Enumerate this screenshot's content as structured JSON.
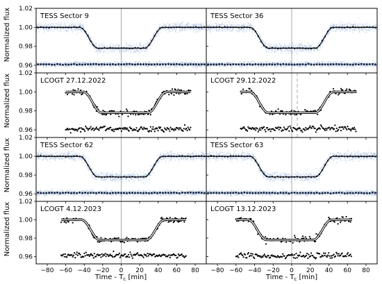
{
  "figure": {
    "ylabel": "Normalized flux",
    "xlabel": "Time - T",
    "xlabel_sub": "c",
    "xlabel_unit": " [min]"
  },
  "chart_data": {
    "type": "scatter",
    "xlim": [
      -92,
      92
    ],
    "ylim": [
      0.952,
      1.02
    ],
    "xticks": [
      -80,
      -60,
      -40,
      -20,
      0,
      20,
      40,
      60,
      80
    ],
    "yticks": [
      0.96,
      0.98,
      1.0,
      1.02
    ],
    "ytick_labels": [
      "0.96",
      "0.98",
      "1.00",
      "1.02"
    ],
    "grid": false,
    "transit_model": {
      "depth": 0.022,
      "t14_half": 45,
      "ingress": 20
    },
    "panels": [
      {
        "title": "TESS Sector 9",
        "kind": "tess",
        "row": 0,
        "col": 0,
        "markers": [
          0
        ]
      },
      {
        "title": "TESS Sector 36",
        "kind": "tess",
        "row": 0,
        "col": 1,
        "markers": [
          0
        ]
      },
      {
        "title": "LCOGT 27.12.2022",
        "kind": "lcogt",
        "row": 1,
        "col": 0,
        "markers": [
          0
        ],
        "dashed": [
          0
        ],
        "xrange": [
          -60,
          75
        ],
        "ingress_offset": 4
      },
      {
        "title": "LCOGT 29.12.2022",
        "kind": "lcogt",
        "row": 1,
        "col": 1,
        "markers": [
          0
        ],
        "dashed": [
          6
        ],
        "xrange": [
          -55,
          70
        ],
        "ingress_offset": 0
      },
      {
        "title": "TESS Sector 62",
        "kind": "tess",
        "row": 2,
        "col": 0,
        "markers": [
          0
        ]
      },
      {
        "title": "TESS Sector 63",
        "kind": "tess",
        "row": 2,
        "col": 1,
        "markers": [
          0
        ]
      },
      {
        "title": "LCOGT 4.12.2023",
        "kind": "lcogt",
        "row": 3,
        "col": 0,
        "markers": [
          0
        ],
        "dashed": [],
        "xrange": [
          -65,
          70
        ],
        "ingress_offset": 2
      },
      {
        "title": "LCOGT 13.12.2023",
        "kind": "lcogt",
        "row": 3,
        "col": 1,
        "markers": [
          0
        ],
        "dashed": [],
        "xrange": [
          -60,
          65
        ],
        "ingress_offset": -2
      }
    ]
  },
  "colors": {
    "tess_points": "#9db8de",
    "binned": "#000000",
    "model": "#000000",
    "residual_binned": "#1c2640",
    "marker_line": "#a9a9a9"
  }
}
